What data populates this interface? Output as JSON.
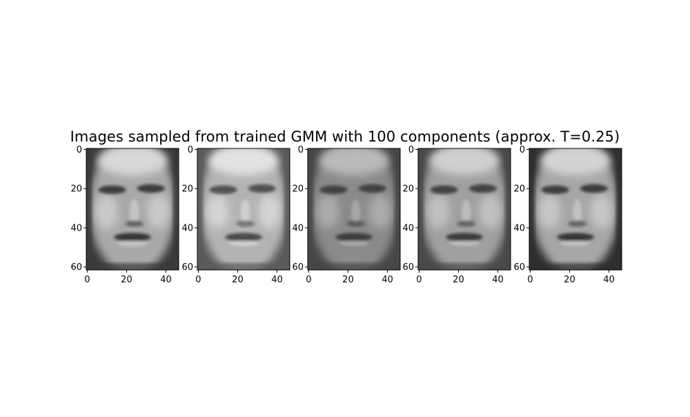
{
  "chart_data": {
    "type": "heatmap",
    "title": "Images sampled from trained GMM with 100 components (approx. T=0.25)",
    "colormap": "gray",
    "image_shape": [
      62,
      47
    ],
    "panels": [
      {
        "name": "sample-1",
        "xticks": [
          "0",
          "20",
          "40"
        ],
        "yticks": [
          "0",
          "20",
          "40",
          "60"
        ],
        "xlim": [
          0,
          47
        ],
        "ylim": [
          62,
          0
        ]
      },
      {
        "name": "sample-2",
        "xticks": [
          "0",
          "20",
          "40"
        ],
        "yticks": [
          "0",
          "20",
          "40",
          "60"
        ],
        "xlim": [
          0,
          47
        ],
        "ylim": [
          62,
          0
        ]
      },
      {
        "name": "sample-3",
        "xticks": [
          "0",
          "20",
          "40"
        ],
        "yticks": [
          "0",
          "20",
          "40",
          "60"
        ],
        "xlim": [
          0,
          47
        ],
        "ylim": [
          62,
          0
        ]
      },
      {
        "name": "sample-4",
        "xticks": [
          "0",
          "20",
          "40"
        ],
        "yticks": [
          "0",
          "20",
          "40",
          "60"
        ],
        "xlim": [
          0,
          47
        ],
        "ylim": [
          62,
          0
        ]
      },
      {
        "name": "sample-5",
        "xticks": [
          "0",
          "20",
          "40"
        ],
        "yticks": [
          "0",
          "20",
          "40",
          "60"
        ],
        "xlim": [
          0,
          47
        ],
        "ylim": [
          62,
          0
        ]
      }
    ]
  }
}
